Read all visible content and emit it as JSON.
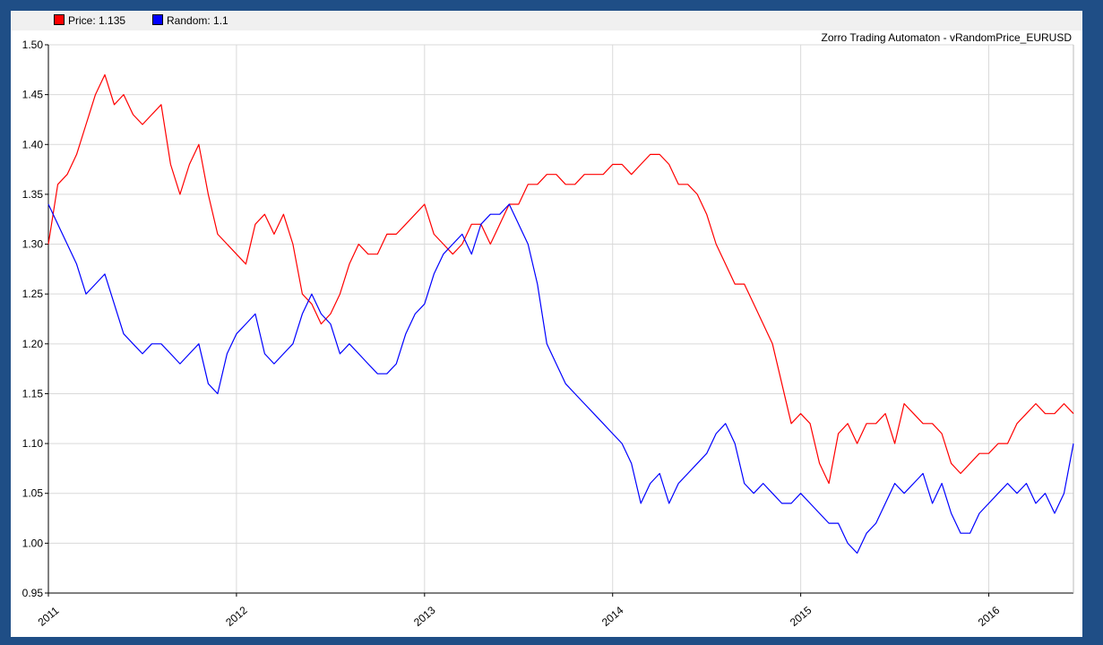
{
  "chart_data": {
    "type": "line",
    "title": "Zorro Trading Automaton - vRandomPrice_EURUSD",
    "xlabel": "",
    "ylabel": "",
    "xlim": [
      2011.0,
      2016.45
    ],
    "ylim": [
      0.95,
      1.5
    ],
    "yticks": [
      "0.95",
      "1.00",
      "1.05",
      "1.10",
      "1.15",
      "1.20",
      "1.25",
      "1.30",
      "1.35",
      "1.40",
      "1.45",
      "1.50"
    ],
    "xticks": [
      "2011",
      "2012",
      "2013",
      "2014",
      "2015",
      "2016"
    ],
    "grid": true,
    "legend": "top-left",
    "series": [
      {
        "name": "Price: 1.135",
        "color": "#ff0000",
        "x": [
          2011.0,
          2011.05,
          2011.1,
          2011.15,
          2011.2,
          2011.25,
          2011.3,
          2011.35,
          2011.4,
          2011.45,
          2011.5,
          2011.55,
          2011.6,
          2011.65,
          2011.7,
          2011.75,
          2011.8,
          2011.85,
          2011.9,
          2011.95,
          2012.0,
          2012.05,
          2012.1,
          2012.15,
          2012.2,
          2012.25,
          2012.3,
          2012.35,
          2012.4,
          2012.45,
          2012.5,
          2012.55,
          2012.6,
          2012.65,
          2012.7,
          2012.75,
          2012.8,
          2012.85,
          2012.9,
          2012.95,
          2013.0,
          2013.05,
          2013.1,
          2013.15,
          2013.2,
          2013.25,
          2013.3,
          2013.35,
          2013.4,
          2013.45,
          2013.5,
          2013.55,
          2013.6,
          2013.65,
          2013.7,
          2013.75,
          2013.8,
          2013.85,
          2013.9,
          2013.95,
          2014.0,
          2014.05,
          2014.1,
          2014.15,
          2014.2,
          2014.25,
          2014.3,
          2014.35,
          2014.4,
          2014.45,
          2014.5,
          2014.55,
          2014.6,
          2014.65,
          2014.7,
          2014.75,
          2014.8,
          2014.85,
          2014.9,
          2014.95,
          2015.0,
          2015.05,
          2015.1,
          2015.15,
          2015.2,
          2015.25,
          2015.3,
          2015.35,
          2015.4,
          2015.45,
          2015.5,
          2015.55,
          2015.6,
          2015.65,
          2015.7,
          2015.75,
          2015.8,
          2015.85,
          2015.9,
          2015.95,
          2016.0,
          2016.05,
          2016.1,
          2016.15,
          2016.2,
          2016.25,
          2016.3,
          2016.35,
          2016.4,
          2016.45
        ],
        "values": [
          1.3,
          1.36,
          1.37,
          1.39,
          1.42,
          1.45,
          1.47,
          1.44,
          1.45,
          1.43,
          1.42,
          1.43,
          1.44,
          1.38,
          1.35,
          1.38,
          1.4,
          1.35,
          1.31,
          1.3,
          1.29,
          1.28,
          1.32,
          1.33,
          1.31,
          1.33,
          1.3,
          1.25,
          1.24,
          1.22,
          1.23,
          1.25,
          1.28,
          1.3,
          1.29,
          1.29,
          1.31,
          1.31,
          1.32,
          1.33,
          1.34,
          1.31,
          1.3,
          1.29,
          1.3,
          1.32,
          1.32,
          1.3,
          1.32,
          1.34,
          1.34,
          1.36,
          1.36,
          1.37,
          1.37,
          1.36,
          1.36,
          1.37,
          1.37,
          1.37,
          1.38,
          1.38,
          1.37,
          1.38,
          1.39,
          1.39,
          1.38,
          1.36,
          1.36,
          1.35,
          1.33,
          1.3,
          1.28,
          1.26,
          1.26,
          1.24,
          1.22,
          1.2,
          1.16,
          1.12,
          1.13,
          1.12,
          1.08,
          1.06,
          1.11,
          1.12,
          1.1,
          1.12,
          1.12,
          1.13,
          1.1,
          1.14,
          1.13,
          1.12,
          1.12,
          1.11,
          1.08,
          1.07,
          1.08,
          1.09,
          1.09,
          1.1,
          1.1,
          1.12,
          1.13,
          1.14,
          1.13,
          1.13,
          1.14,
          1.13
        ]
      },
      {
        "name": "Random: 1.1",
        "color": "#0000ff",
        "x": [
          2011.0,
          2011.05,
          2011.1,
          2011.15,
          2011.2,
          2011.25,
          2011.3,
          2011.35,
          2011.4,
          2011.45,
          2011.5,
          2011.55,
          2011.6,
          2011.65,
          2011.7,
          2011.75,
          2011.8,
          2011.85,
          2011.9,
          2011.95,
          2012.0,
          2012.05,
          2012.1,
          2012.15,
          2012.2,
          2012.25,
          2012.3,
          2012.35,
          2012.4,
          2012.45,
          2012.5,
          2012.55,
          2012.6,
          2012.65,
          2012.7,
          2012.75,
          2012.8,
          2012.85,
          2012.9,
          2012.95,
          2013.0,
          2013.05,
          2013.1,
          2013.15,
          2013.2,
          2013.25,
          2013.3,
          2013.35,
          2013.4,
          2013.45,
          2013.5,
          2013.55,
          2013.6,
          2013.65,
          2013.7,
          2013.75,
          2013.8,
          2013.85,
          2013.9,
          2013.95,
          2014.0,
          2014.05,
          2014.1,
          2014.15,
          2014.2,
          2014.25,
          2014.3,
          2014.35,
          2014.4,
          2014.45,
          2014.5,
          2014.55,
          2014.6,
          2014.65,
          2014.7,
          2014.75,
          2014.8,
          2014.85,
          2014.9,
          2014.95,
          2015.0,
          2015.05,
          2015.1,
          2015.15,
          2015.2,
          2015.25,
          2015.3,
          2015.35,
          2015.4,
          2015.45,
          2015.5,
          2015.55,
          2015.6,
          2015.65,
          2015.7,
          2015.75,
          2015.8,
          2015.85,
          2015.9,
          2015.95,
          2016.0,
          2016.05,
          2016.1,
          2016.15,
          2016.2,
          2016.25,
          2016.3,
          2016.35,
          2016.4,
          2016.45
        ],
        "values": [
          1.34,
          1.32,
          1.3,
          1.28,
          1.25,
          1.26,
          1.27,
          1.24,
          1.21,
          1.2,
          1.19,
          1.2,
          1.2,
          1.19,
          1.18,
          1.19,
          1.2,
          1.16,
          1.15,
          1.19,
          1.21,
          1.22,
          1.23,
          1.19,
          1.18,
          1.19,
          1.2,
          1.23,
          1.25,
          1.23,
          1.22,
          1.19,
          1.2,
          1.19,
          1.18,
          1.17,
          1.17,
          1.18,
          1.21,
          1.23,
          1.24,
          1.27,
          1.29,
          1.3,
          1.31,
          1.29,
          1.32,
          1.33,
          1.33,
          1.34,
          1.32,
          1.3,
          1.26,
          1.2,
          1.18,
          1.16,
          1.15,
          1.14,
          1.13,
          1.12,
          1.11,
          1.1,
          1.08,
          1.04,
          1.06,
          1.07,
          1.04,
          1.06,
          1.07,
          1.08,
          1.09,
          1.11,
          1.12,
          1.1,
          1.06,
          1.05,
          1.06,
          1.05,
          1.04,
          1.04,
          1.05,
          1.04,
          1.03,
          1.02,
          1.02,
          1.0,
          0.99,
          1.01,
          1.02,
          1.04,
          1.06,
          1.05,
          1.06,
          1.07,
          1.04,
          1.06,
          1.03,
          1.01,
          1.01,
          1.03,
          1.04,
          1.05,
          1.06,
          1.05,
          1.06,
          1.04,
          1.05,
          1.03,
          1.05,
          1.1
        ]
      }
    ]
  }
}
